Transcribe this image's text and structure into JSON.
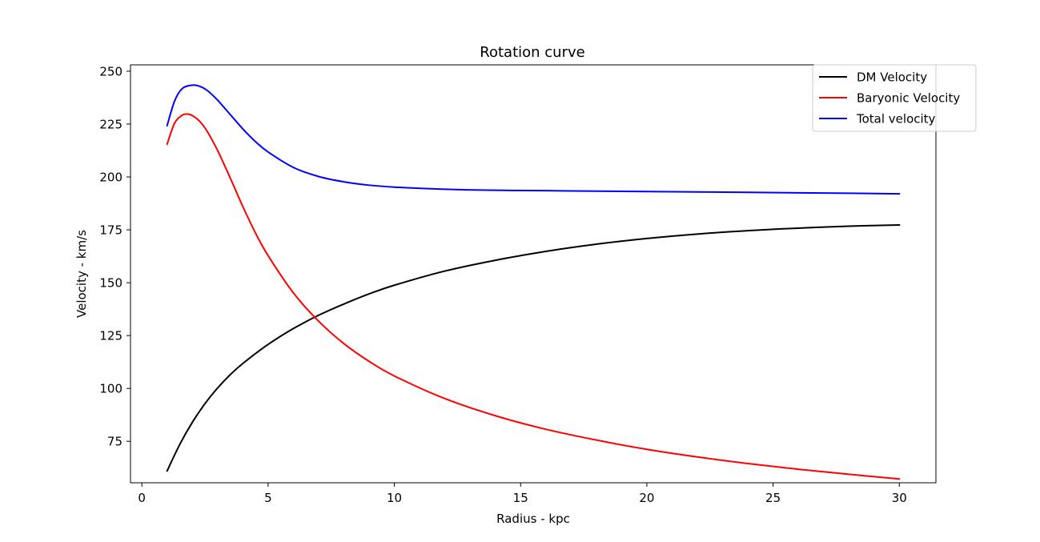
{
  "chart_data": {
    "type": "line",
    "title": "Rotation curve",
    "xlabel": "Radius - kpc",
    "ylabel": "Velocity - km/s",
    "xlim": [
      -0.45,
      31.45
    ],
    "ylim": [
      55.4,
      253.0
    ],
    "xticks": [
      0,
      5,
      10,
      15,
      20,
      25,
      30
    ],
    "yticks": [
      75,
      100,
      125,
      150,
      175,
      200,
      225,
      250
    ],
    "grid": false,
    "legend_position": "top-right",
    "series": [
      {
        "name": "DM Velocity",
        "color": "#000000",
        "x": [
          1,
          1.5,
          2,
          2.5,
          3,
          3.5,
          4,
          5,
          6,
          7,
          8,
          9,
          10,
          12,
          14,
          16,
          18,
          20,
          22,
          24,
          26,
          28,
          30
        ],
        "y": [
          61,
          73.5,
          84,
          92.8,
          100.2,
          106.5,
          111.8,
          120.8,
          128.3,
          134.6,
          139.9,
          144.7,
          148.8,
          155.5,
          160.6,
          164.8,
          168.2,
          170.9,
          173.0,
          174.6,
          175.8,
          176.7,
          177.3
        ]
      },
      {
        "name": "Baryonic Velocity",
        "color": "#ff0000",
        "x": [
          1,
          1.3,
          1.6,
          1.8,
          2,
          2.3,
          2.6,
          3,
          3.5,
          4,
          4.5,
          5,
          6,
          7,
          8,
          9,
          10,
          12,
          14,
          16,
          18,
          20,
          22,
          24,
          26,
          28,
          30
        ],
        "y": [
          215.5,
          225.5,
          229.2,
          229.7,
          229,
          226.2,
          221.3,
          212.5,
          199.5,
          186,
          173.5,
          162.8,
          145.2,
          131.8,
          121.2,
          112.8,
          105.9,
          95.2,
          87.1,
          80.7,
          75.6,
          71.2,
          67.6,
          64.5,
          61.8,
          59.4,
          57.2
        ]
      },
      {
        "name": "Total velocity",
        "color": "#0000ff",
        "x": [
          1,
          1.3,
          1.6,
          2,
          2.3,
          2.6,
          3,
          3.5,
          4,
          4.5,
          5,
          6,
          7,
          8,
          9,
          10,
          12,
          14,
          16,
          18,
          20,
          22,
          24,
          26,
          28,
          30
        ],
        "y": [
          224.3,
          236,
          241.8,
          243.4,
          242.8,
          240.8,
          236.3,
          229.5,
          222.7,
          216.7,
          211.8,
          204.5,
          200.2,
          197.7,
          196.1,
          195.2,
          194.2,
          193.7,
          193.5,
          193.3,
          193.1,
          192.9,
          192.7,
          192.5,
          192.3,
          192.0
        ]
      }
    ]
  }
}
